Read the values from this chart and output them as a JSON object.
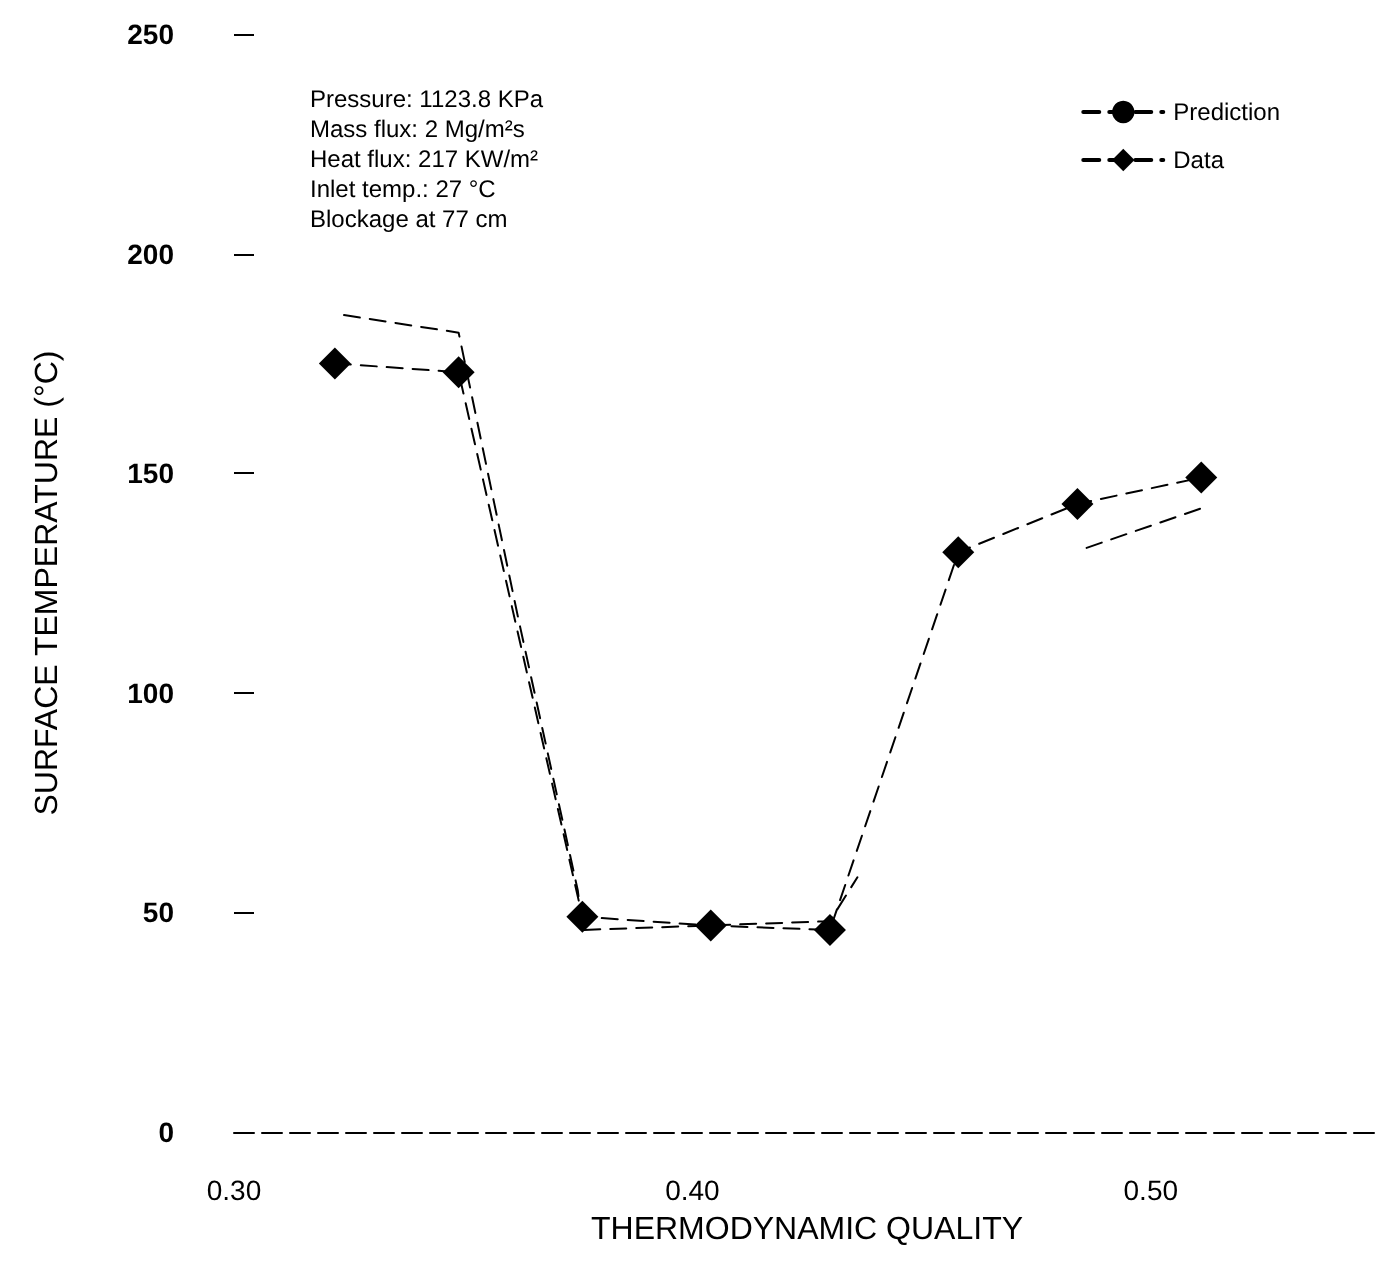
{
  "chart_data": {
    "type": "line",
    "xlabel": "THERMODYNAMIC QUALITY",
    "ylabel": "SURFACE TEMPERATURE (°C)",
    "annotations": [
      "Pressure: 1123.8 KPa",
      "Mass flux: 2 Mg/m²s",
      "Heat flux: 217 KW/m²",
      "Inlet temp.: 27 °C",
      "Blockage at 77 cm"
    ],
    "xlim": [
      0.3,
      0.55
    ],
    "xticks": [
      {
        "value": 0.3,
        "label": "0.30"
      },
      {
        "value": 0.4,
        "label": "0.40"
      },
      {
        "value": 0.5,
        "label": "0.50"
      }
    ],
    "ylim": [
      0,
      250
    ],
    "yticks": [
      0,
      50,
      100,
      150,
      200,
      250
    ],
    "legend": "top right",
    "series": [
      {
        "name": "Prediction",
        "color": "#000000",
        "marker": "none",
        "line_style": "dashed",
        "x": [
          0.324,
          0.349,
          0.362,
          0.375,
          0.376,
          0.43,
          0.436,
          0.46,
          0.486,
          0.511
        ],
        "values": [
          186,
          182,
          117,
          55,
          46,
          48,
          58,
          null,
          133,
          142
        ]
      },
      {
        "name": "Data",
        "color": "#000000",
        "marker": "diamond",
        "line_style": "dashed",
        "x": [
          0.322,
          0.349,
          0.376,
          0.404,
          0.43,
          0.458,
          0.484,
          0.511
        ],
        "values": [
          175,
          173,
          49,
          47,
          46,
          132,
          143,
          149
        ]
      }
    ]
  }
}
